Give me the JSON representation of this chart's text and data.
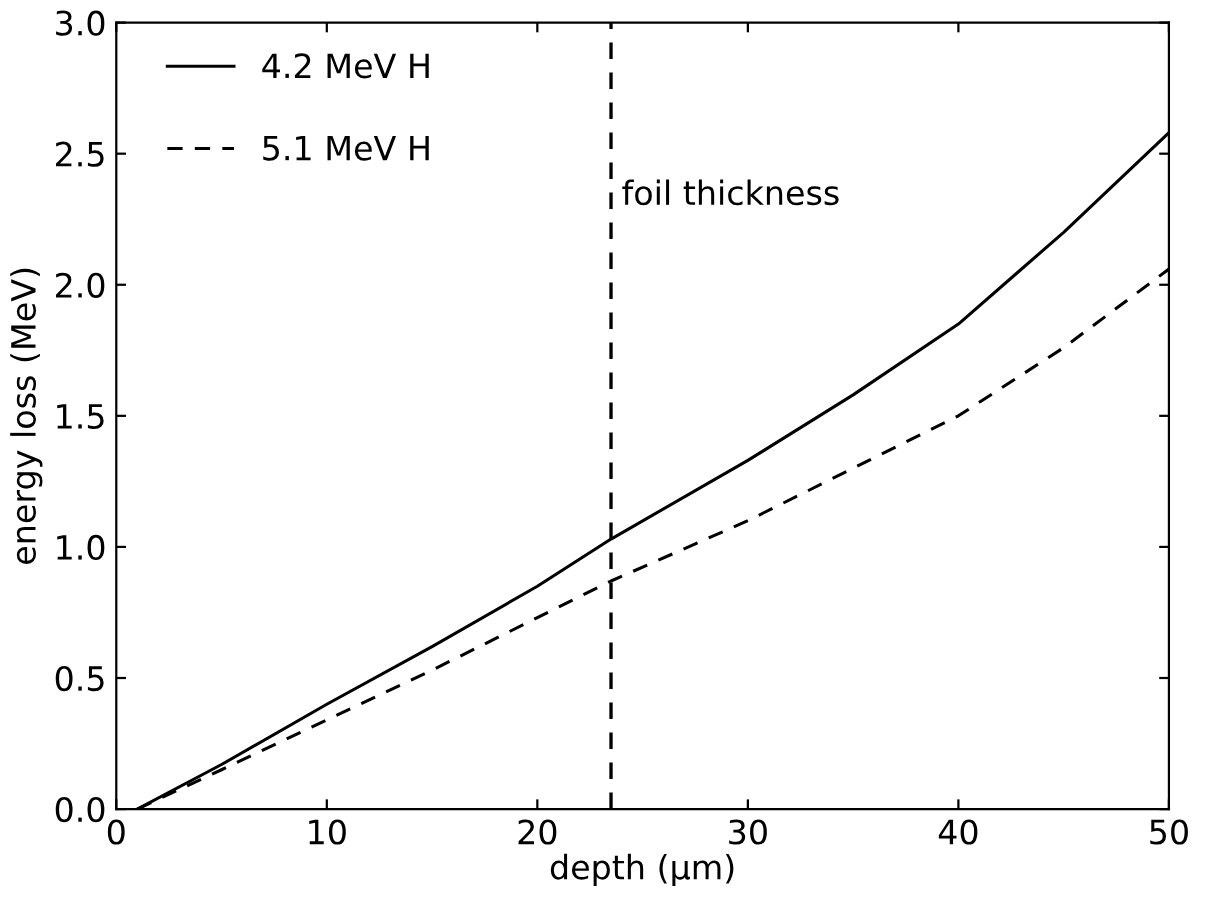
{
  "chart_data": {
    "type": "line",
    "xlabel": "depth (μm)",
    "ylabel": "energy loss (MeV)",
    "xlim": [
      0,
      50
    ],
    "ylim": [
      0,
      3.0
    ],
    "xticks": [
      0,
      10,
      20,
      30,
      40,
      50
    ],
    "yticks": [
      {
        "value": 0,
        "label": "0.0"
      },
      0.5,
      {
        "value": 1,
        "label": "1.0"
      },
      1.5,
      {
        "value": 2,
        "label": "2.0"
      },
      2.5,
      {
        "value": 3,
        "label": "3.0"
      }
    ],
    "series": [
      {
        "name": "4.2 MeV H",
        "color": "#000000",
        "line_style": "solid",
        "x": [
          1,
          5,
          10,
          15,
          20,
          23.5,
          30,
          35,
          40,
          45,
          50
        ],
        "values": [
          0,
          0.17,
          0.4,
          0.62,
          0.85,
          1.03,
          1.33,
          1.58,
          1.85,
          2.2,
          2.58
        ]
      },
      {
        "name": "5.1 MeV H",
        "color": "#000000",
        "line_style": "dashed",
        "x": [
          1,
          5,
          10,
          15,
          20,
          23.5,
          30,
          35,
          40,
          45,
          50
        ],
        "values": [
          0,
          0.15,
          0.34,
          0.53,
          0.73,
          0.87,
          1.1,
          1.3,
          1.5,
          1.76,
          2.06
        ]
      }
    ],
    "ref_lines": [
      {
        "axis": "x",
        "value": 23.5,
        "label": "foil thickness",
        "line_style": "dashed",
        "color": "#000000"
      }
    ],
    "legend": "top left",
    "grid": false
  }
}
